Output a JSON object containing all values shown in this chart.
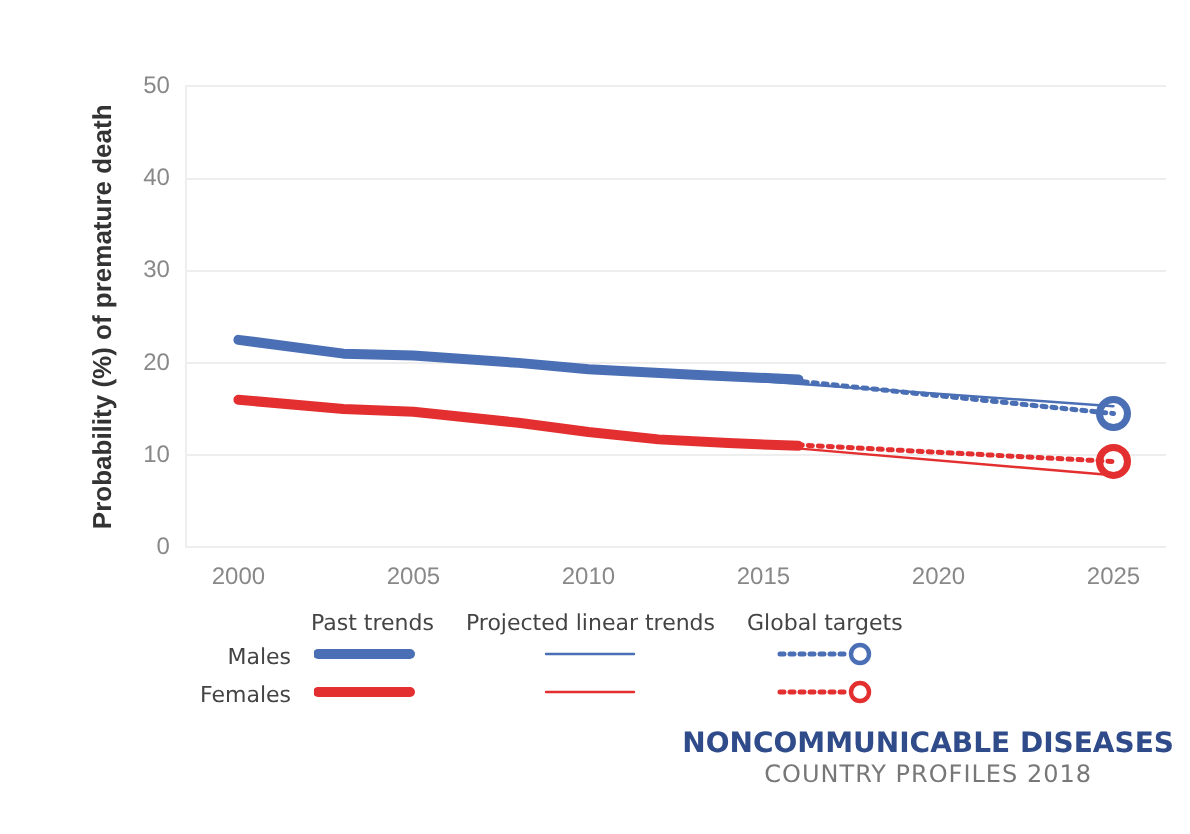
{
  "chart_data": {
    "type": "line",
    "ylabel": "Probability (%) of premature death",
    "xlim": [
      1998.5,
      2026.5
    ],
    "xticks": [
      2000,
      2005,
      2010,
      2015,
      2020,
      2025
    ],
    "ylim": [
      0,
      50
    ],
    "yticks": [
      0,
      10,
      20,
      30,
      40,
      50
    ],
    "grid": "y",
    "series": [
      {
        "name": "Males",
        "color": "#4a6fb5",
        "line_style": "solid",
        "marker": "none",
        "x": [
          2000,
          2003,
          2005,
          2008,
          2010,
          2013,
          2016
        ],
        "values": [
          22.5,
          21,
          20.8,
          20,
          19.3,
          18.7,
          18.2
        ]
      },
      {
        "name": "Females",
        "color": "#e32f2f",
        "line_style": "solid",
        "marker": "none",
        "x": [
          2000,
          2003,
          2005,
          2008,
          2010,
          2012,
          2014,
          2016
        ],
        "values": [
          16,
          15,
          14.7,
          13.5,
          12.5,
          11.7,
          11.3,
          11
        ]
      },
      {
        "color": "#4a6fb5",
        "line_style": "solid",
        "marker": "none",
        "x": [
          2012,
          2025
        ],
        "values": [
          18.8,
          15.3
        ]
      },
      {
        "color": "#e32f2f",
        "line_style": "solid",
        "marker": "none",
        "x": [
          2012,
          2025
        ],
        "values": [
          12,
          7.8
        ]
      },
      {
        "color": "#4a6fb5",
        "line_style": "dotted",
        "marker": "none",
        "x": [
          2013,
          2016,
          2025
        ],
        "values": [
          18.6,
          18,
          14.5
        ]
      },
      {
        "color": "#e32f2f",
        "line_style": "dotted",
        "marker": "none",
        "x": [
          2012,
          2016,
          2025
        ],
        "values": [
          11.6,
          11.1,
          9.3
        ]
      },
      {
        "type": "scatter",
        "color": "#4a6fb5",
        "marker": "circle",
        "x": [
          2025
        ],
        "values": [
          14.5
        ]
      },
      {
        "type": "scatter",
        "color": "#e32f2f",
        "marker": "circle",
        "x": [
          2025
        ],
        "values": [
          9.3
        ]
      }
    ],
    "legend": "bottom",
    "annotations": [
      "Past trends",
      "Projected linear trends",
      "Global targets",
      "NONCOMMUNICABLE DISEASES",
      "COUNTRY PROFILES 2018"
    ]
  }
}
